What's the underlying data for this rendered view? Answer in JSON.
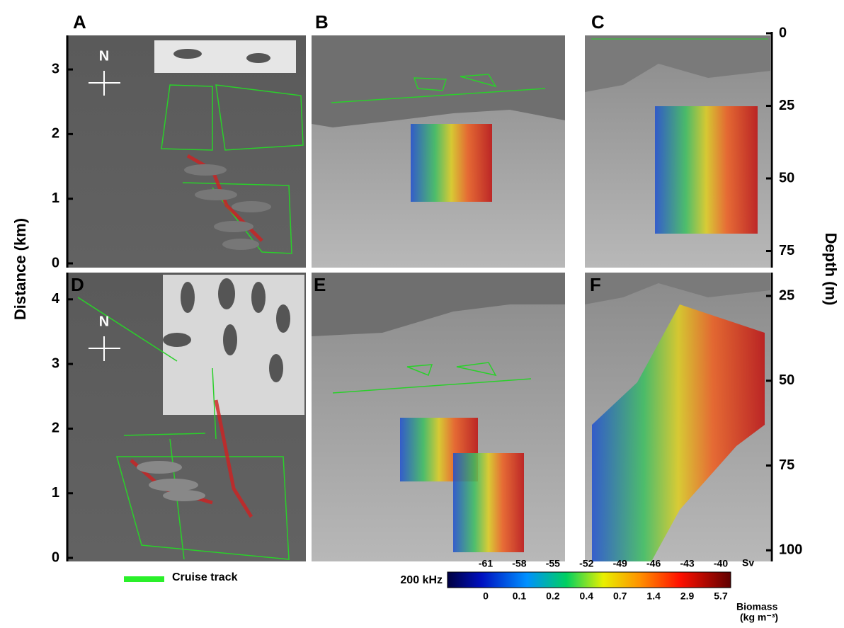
{
  "panels": [
    {
      "label": "A"
    },
    {
      "label": "B"
    },
    {
      "label": "C"
    },
    {
      "label": "D"
    },
    {
      "label": "E"
    },
    {
      "label": "F"
    }
  ],
  "compass": [
    "N",
    "N"
  ],
  "left_axis": {
    "title": "Distance (km)",
    "top_ticks": [
      0,
      1,
      2,
      3
    ],
    "bottom_ticks": [
      0,
      1,
      2,
      3,
      4
    ]
  },
  "right_axis": {
    "title": "Depth (m)",
    "top_ticks": [
      0,
      25,
      50,
      75
    ],
    "bottom_ticks": [
      25,
      50,
      75,
      100
    ]
  },
  "legend": {
    "label": "Cruise track"
  },
  "colorbar": {
    "frequency": "200 kHz",
    "sv_label": "Sv",
    "sv_ticks": [
      -61,
      -58,
      -55,
      -52,
      -49,
      -46,
      -43,
      -40
    ],
    "biomass_label": "Biomass",
    "biomass_unit": "(kg m⁻³)",
    "biomass_ticks": [
      0,
      0.1,
      0.2,
      0.4,
      0.7,
      1.4,
      2.9,
      5.7
    ]
  }
}
